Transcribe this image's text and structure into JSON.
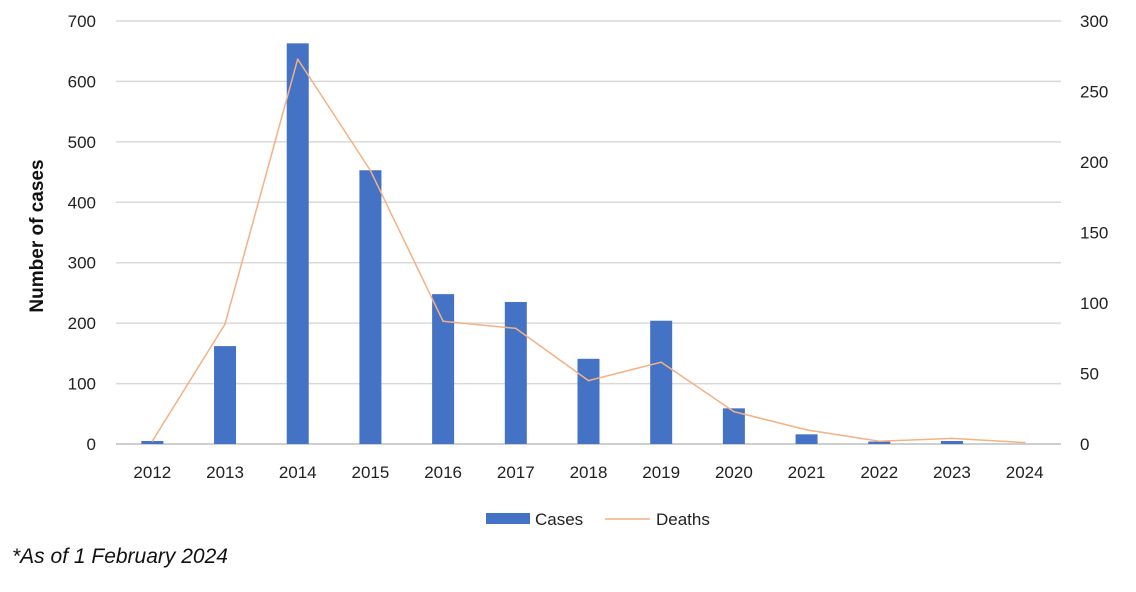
{
  "chart_data": {
    "type": "bar",
    "categories": [
      "2012",
      "2013",
      "2014",
      "2015",
      "2016",
      "2017",
      "2018",
      "2019",
      "2020",
      "2021",
      "2022",
      "2023",
      "2024"
    ],
    "series": [
      {
        "name": "Cases",
        "type": "bar",
        "axis": "left",
        "color": "#4472C4",
        "values": [
          5,
          162,
          663,
          453,
          248,
          235,
          141,
          204,
          59,
          16,
          4,
          5,
          0
        ]
      },
      {
        "name": "Deaths",
        "type": "line",
        "axis": "right",
        "color": "#F4B183",
        "values": [
          2,
          85,
          273,
          194,
          87,
          82,
          45,
          58,
          23,
          10,
          2,
          4,
          1
        ]
      }
    ],
    "ylabel": "Number of cases",
    "ylim": [
      0,
      700
    ],
    "yticks": [
      0,
      100,
      200,
      300,
      400,
      500,
      600,
      700
    ],
    "y2lim": [
      0,
      300
    ],
    "y2ticks": [
      0,
      50,
      100,
      150,
      200,
      250,
      300
    ],
    "grid": true,
    "legend_position": "bottom-center"
  },
  "footnote": "*As of 1 February 2024"
}
